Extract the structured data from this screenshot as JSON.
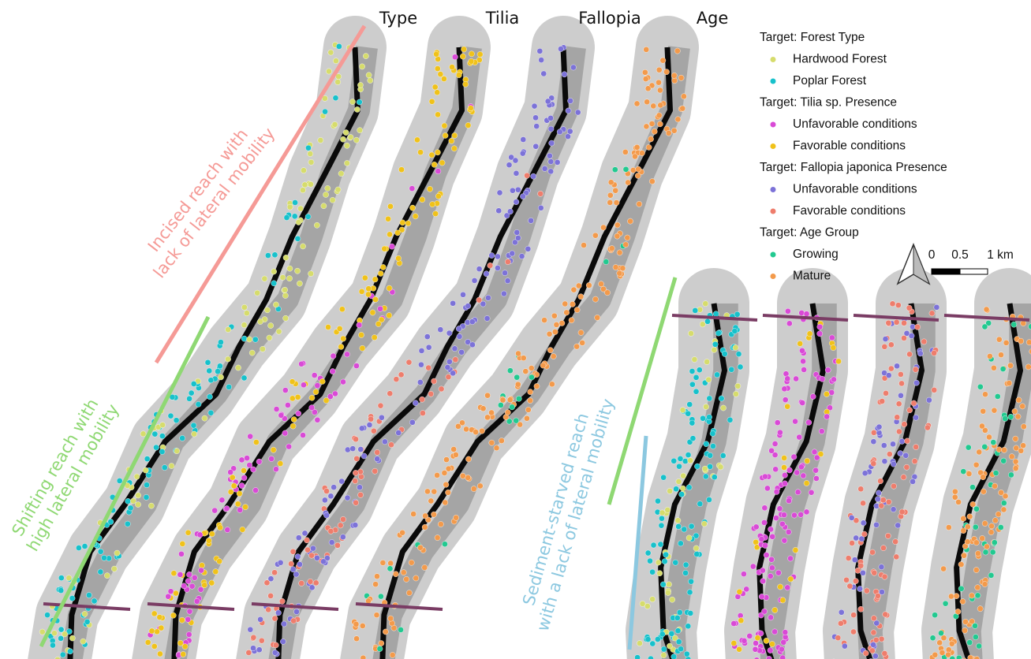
{
  "headers": [
    "Type",
    "Tilia",
    "Fallopia",
    "Age"
  ],
  "legend": [
    {
      "title": "Target: Forest Type",
      "items": [
        {
          "label": "Hardwood Forest",
          "color": "#d6dc6c"
        },
        {
          "label": "Poplar Forest",
          "color": "#17c1cb"
        }
      ]
    },
    {
      "title": "Target: Tilia sp. Presence",
      "items": [
        {
          "label": "Unfavorable conditions",
          "color": "#d94ad6"
        },
        {
          "label": "Favorable conditions",
          "color": "#f0c21a"
        }
      ]
    },
    {
      "title": "Target: Fallopia japonica Presence",
      "items": [
        {
          "label": "Unfavorable conditions",
          "color": "#7c72d8"
        },
        {
          "label": "Favorable conditions",
          "color": "#ee7d6c"
        }
      ]
    },
    {
      "title": "Target: Age Group",
      "items": [
        {
          "label": "Growing",
          "color": "#22c990"
        },
        {
          "label": "Mature",
          "color": "#f39a4b"
        }
      ]
    }
  ],
  "scale_bar": {
    "labels": [
      "0",
      "0.5",
      "1 km"
    ]
  },
  "reach_labels": [
    {
      "lines": [
        "Incised reach  with",
        "lack of lateral mobility"
      ],
      "color": "#f59a96"
    },
    {
      "lines": [
        "Shifting reach with",
        "high lateral mobility"
      ],
      "color": "#8fd873"
    },
    {
      "lines": [
        "Sediment-starved reach",
        "with a lack of lateral mobility"
      ],
      "color": "#8cc8e0"
    }
  ]
}
